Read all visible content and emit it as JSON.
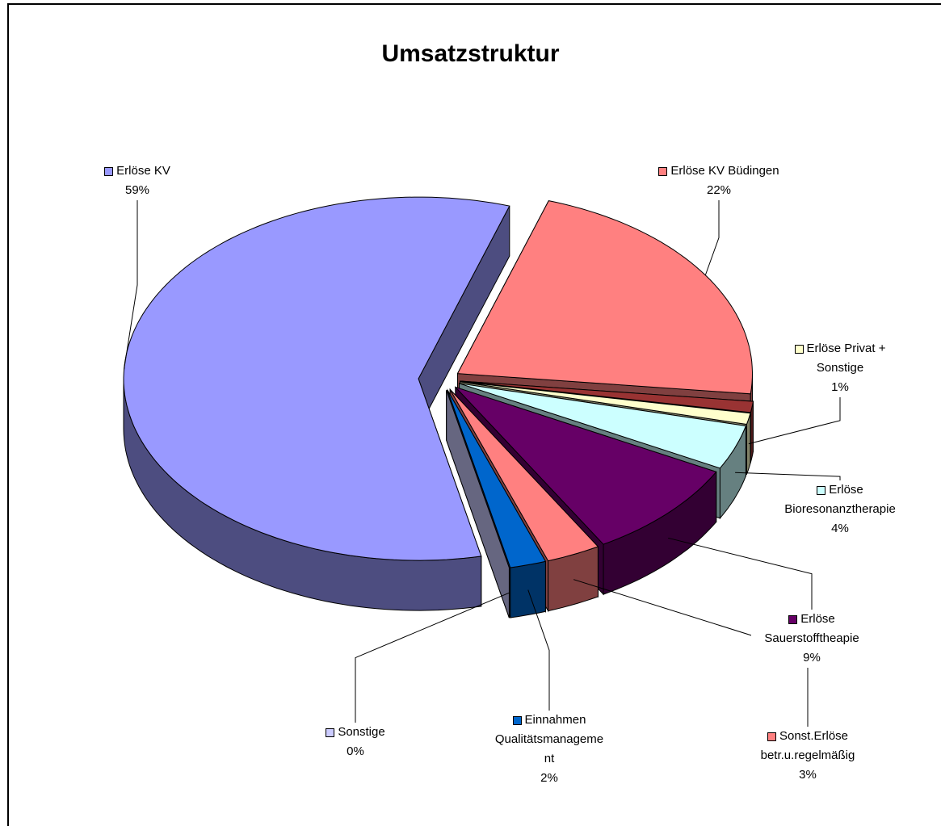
{
  "chart_data": {
    "type": "pie3d",
    "title": "Umsatzstruktur",
    "categories": [
      "Erlöse KV Büdingen",
      null,
      "Erlöse Privat + Sonstige",
      "Erlöse Bioresonanztherapie",
      "Erlöse Sauerstofftheapie",
      "Sonst.Erlöse betr.u.regelmäßig",
      "Einnahmen Qualitätsmanagement",
      "Sonstige",
      "Erlöse KV"
    ],
    "values": [
      22,
      1,
      1,
      4,
      9,
      3,
      2,
      0,
      59
    ],
    "value_labels": [
      "22%",
      null,
      "1%",
      "4%",
      "9%",
      "3%",
      "2%",
      "0%",
      "59%"
    ],
    "colors": [
      "#ff8080",
      "#993333",
      "#ffffcc",
      "#ccffff",
      "#660066",
      "#ff8080",
      "#0066cc",
      "#ccccff",
      "#9999ff"
    ]
  }
}
